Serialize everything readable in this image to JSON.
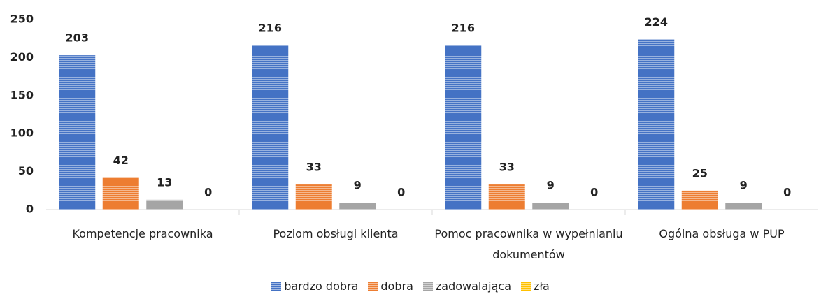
{
  "chart_data": {
    "type": "bar",
    "categories": [
      "Kompetencje pracownika",
      "Poziom obsługi klienta",
      "Pomoc pracownika w wypełnianiu dokumentów",
      "Ogólna obsługa w PUP"
    ],
    "series": [
      {
        "name": "bardzo dobra",
        "color": "#4472c4",
        "values": [
          203,
          216,
          216,
          224
        ]
      },
      {
        "name": "dobra",
        "color": "#ed7d31",
        "values": [
          42,
          33,
          33,
          25
        ]
      },
      {
        "name": "zadowalająca",
        "color": "#a5a5a5",
        "values": [
          13,
          9,
          9,
          9
        ]
      },
      {
        "name": "zła",
        "color": "#ffc000",
        "values": [
          0,
          0,
          0,
          0
        ]
      }
    ],
    "ylim": [
      0,
      250
    ],
    "yticks": [
      0,
      50,
      100,
      150,
      200,
      250
    ],
    "grid": false,
    "legend": "bottom"
  }
}
